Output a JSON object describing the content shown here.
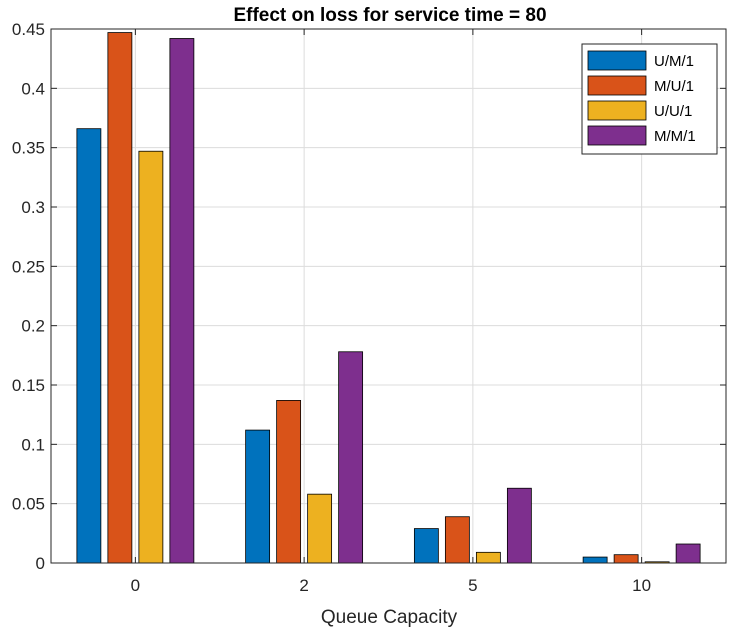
{
  "chart_data": {
    "type": "bar",
    "title": "Effect on loss for service time = 80",
    "xlabel": "Queue Capacity",
    "ylabel": "",
    "categories": [
      "0",
      "2",
      "5",
      "10"
    ],
    "ylim": [
      0,
      0.45
    ],
    "yticks": [
      "0",
      "0.05",
      "0.1",
      "0.15",
      "0.2",
      "0.25",
      "0.3",
      "0.35",
      "0.4",
      "0.45"
    ],
    "grid": true,
    "legend_position": "top-right",
    "series": [
      {
        "name": "U/M/1",
        "color": "#0072BD",
        "values": [
          0.366,
          0.112,
          0.029,
          0.005
        ]
      },
      {
        "name": "M/U/1",
        "color": "#D95319",
        "values": [
          0.447,
          0.137,
          0.039,
          0.007
        ]
      },
      {
        "name": "U/U/1",
        "color": "#EDB120",
        "values": [
          0.347,
          0.058,
          0.009,
          0.001
        ]
      },
      {
        "name": "M/M/1",
        "color": "#7E2F8E",
        "values": [
          0.442,
          0.178,
          0.063,
          0.016
        ]
      }
    ]
  }
}
